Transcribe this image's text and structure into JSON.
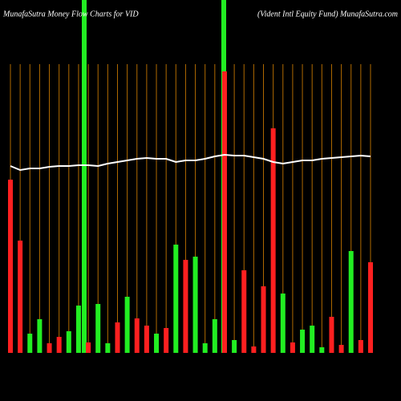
{
  "chart_data": {
    "type": "bar",
    "title": "MunafaSutra  Money Flow  Charts for VID",
    "subtitle": "(Vident Intl Equity Fund) MunafaSutra.com",
    "values": [
      216,
      140,
      24,
      42,
      12,
      20,
      27,
      59,
      13,
      61,
      12,
      38,
      70,
      43,
      34,
      24,
      31,
      135,
      116,
      120,
      12,
      42,
      351,
      16,
      103,
      8,
      83,
      280,
      74,
      13,
      29,
      34,
      7,
      45,
      10,
      127,
      16,
      113
    ],
    "colors": [
      "#ff2020",
      "#ff2020",
      "#22ee22",
      "#22ee22",
      "#ff2020",
      "#ff2020",
      "#22ee22",
      "#22ee22",
      "#ff2020",
      "#22ee22",
      "#22ee22",
      "#ff2020",
      "#22ee22",
      "#ff2020",
      "#ff2020",
      "#22ee22",
      "#ff2020",
      "#22ee22",
      "#ff2020",
      "#22ee22",
      "#22ee22",
      "#22ee22",
      "#ff2020",
      "#22ee22",
      "#ff2020",
      "#ff2020",
      "#ff2020",
      "#ff2020",
      "#22ee22",
      "#ff2020",
      "#22ee22",
      "#22ee22",
      "#22ee22",
      "#ff2020",
      "#ff2020",
      "#22ee22",
      "#ff2020",
      "#ff2020"
    ],
    "line_values": [
      233,
      228,
      230,
      230,
      232,
      233,
      233,
      234,
      234,
      233,
      236,
      238,
      240,
      242,
      243,
      242,
      242,
      238,
      240,
      240,
      242,
      245,
      247,
      246,
      246,
      244,
      242,
      238,
      236,
      238,
      240,
      240,
      242,
      243,
      244,
      245,
      246,
      245
    ],
    "line_color": "#ffffff",
    "ylim": [
      0,
      440
    ]
  }
}
